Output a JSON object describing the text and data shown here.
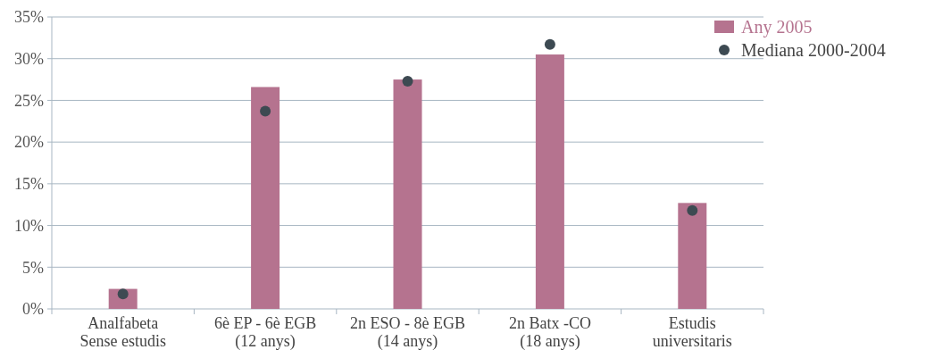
{
  "chart_data": {
    "type": "bar",
    "categories": [
      "Analfabeta\nSense estudis",
      "6è EP - 6è EGB\n(12 anys)",
      "2n ESO - 8è EGB\n(14 anys)",
      "2n Batx -CO\n(18 anys)",
      "Estudis\nuniversitaris"
    ],
    "series": [
      {
        "name": "Any 2005",
        "color": "#b5738f",
        "values": [
          2.4,
          26.6,
          27.5,
          30.5,
          12.7
        ]
      },
      {
        "name": "Mediana 2000-2004",
        "type": "scatter",
        "color": "#3d4a52",
        "x": [
          "Analfabeta\nSense estudis",
          "6è EP - 6è EGB\n(12 anys)",
          "2n ESO - 8è EGB\n(14 anys)",
          "2n Batx -CO\n(18 anys)",
          "Estudis\nuniversitaris"
        ],
        "values": [
          1.8,
          23.7,
          27.3,
          31.7,
          11.8
        ]
      }
    ],
    "ylim": [
      0,
      35
    ],
    "yticks": [
      {
        "value": 0,
        "label": "0%"
      },
      {
        "value": 5,
        "label": "5%"
      },
      {
        "value": 10,
        "label": "10%"
      },
      {
        "value": 15,
        "label": "15%"
      },
      {
        "value": 20,
        "label": "20%"
      },
      {
        "value": 25,
        "label": "25%"
      },
      {
        "value": 30,
        "label": "30%"
      },
      {
        "value": 35,
        "label": "35%"
      }
    ],
    "grid": "y",
    "legend": "top right",
    "marker": "circle"
  }
}
